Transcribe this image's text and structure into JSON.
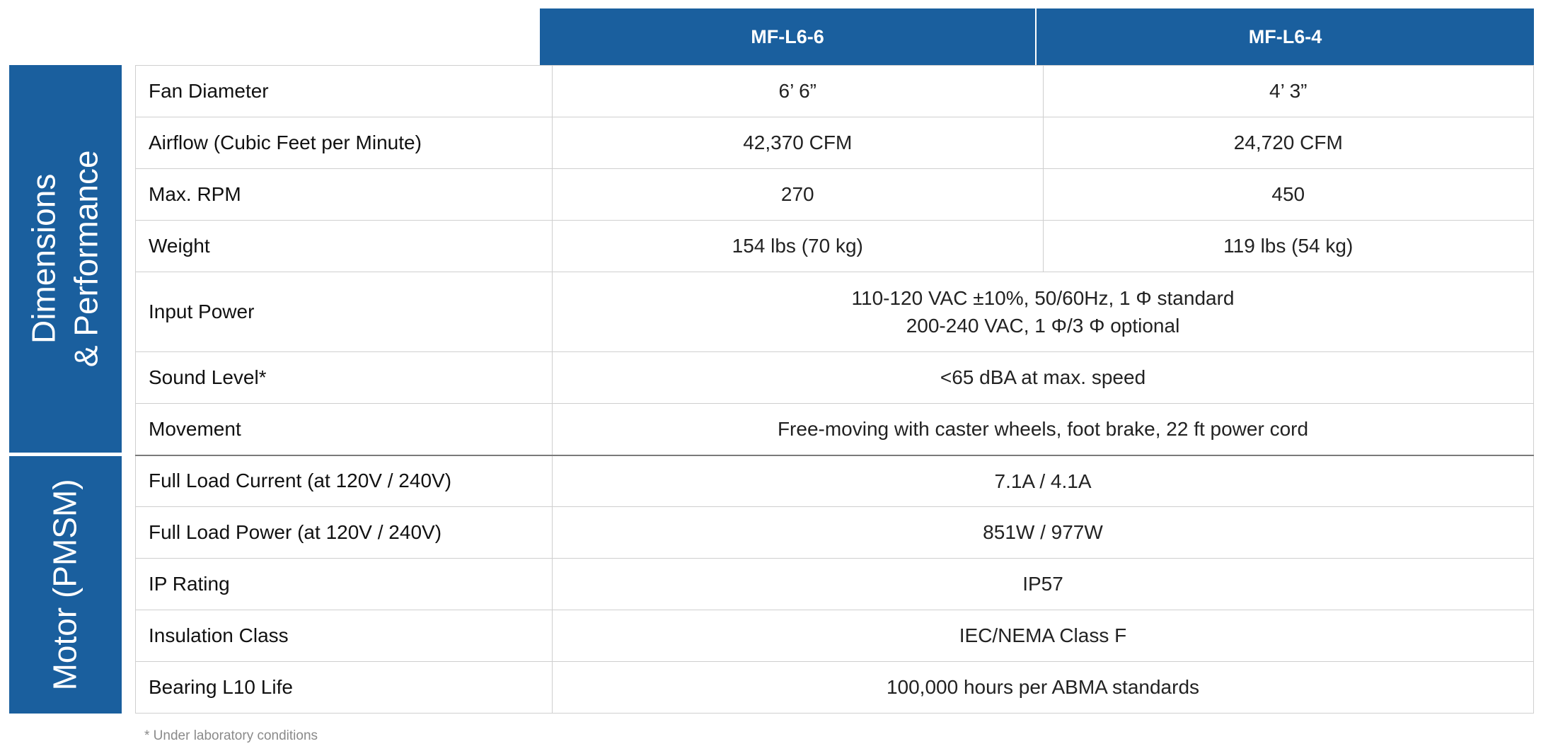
{
  "columns": [
    "MF-L6-6",
    "MF-L6-4"
  ],
  "groups": [
    {
      "label_line1": "Dimensions",
      "label_line2": "& Performance"
    },
    {
      "label_line1": "Motor (PMSM)",
      "label_line2": ""
    }
  ],
  "rows": [
    {
      "label": "Fan Diameter",
      "v1": "6’ 6”",
      "v2": "4’ 3”"
    },
    {
      "label": "Airflow (Cubic Feet per Minute)",
      "v1": "42,370 CFM",
      "v2": "24,720 CFM"
    },
    {
      "label": "Max. RPM",
      "v1": "270",
      "v2": "450"
    },
    {
      "label": "Weight",
      "v1": "154 lbs (70 kg)",
      "v2": "119 lbs (54 kg)"
    },
    {
      "label": "Input Power",
      "line1": "110-120 VAC ±10%, 50/60Hz, 1 Φ standard",
      "line2": "200-240 VAC, 1 Φ/3 Φ optional"
    },
    {
      "label": "Sound Level*",
      "value": "<65 dBA at max. speed"
    },
    {
      "label": "Movement",
      "value": "Free-moving with caster wheels, foot brake, 22 ft power cord"
    },
    {
      "label": "Full Load Current (at 120V / 240V)",
      "value": "7.1A / 4.1A"
    },
    {
      "label": "Full Load Power (at 120V / 240V)",
      "value": "851W / 977W"
    },
    {
      "label": "IP Rating",
      "value": "IP57"
    },
    {
      "label": "Insulation Class",
      "value": "IEC/NEMA Class F"
    },
    {
      "label": "Bearing L10 Life",
      "value": "100,000 hours per ABMA standards"
    }
  ],
  "footnote": "* Under laboratory conditions",
  "colors": {
    "header_blue": "#1a5f9e",
    "border": "#cfcfcf"
  }
}
